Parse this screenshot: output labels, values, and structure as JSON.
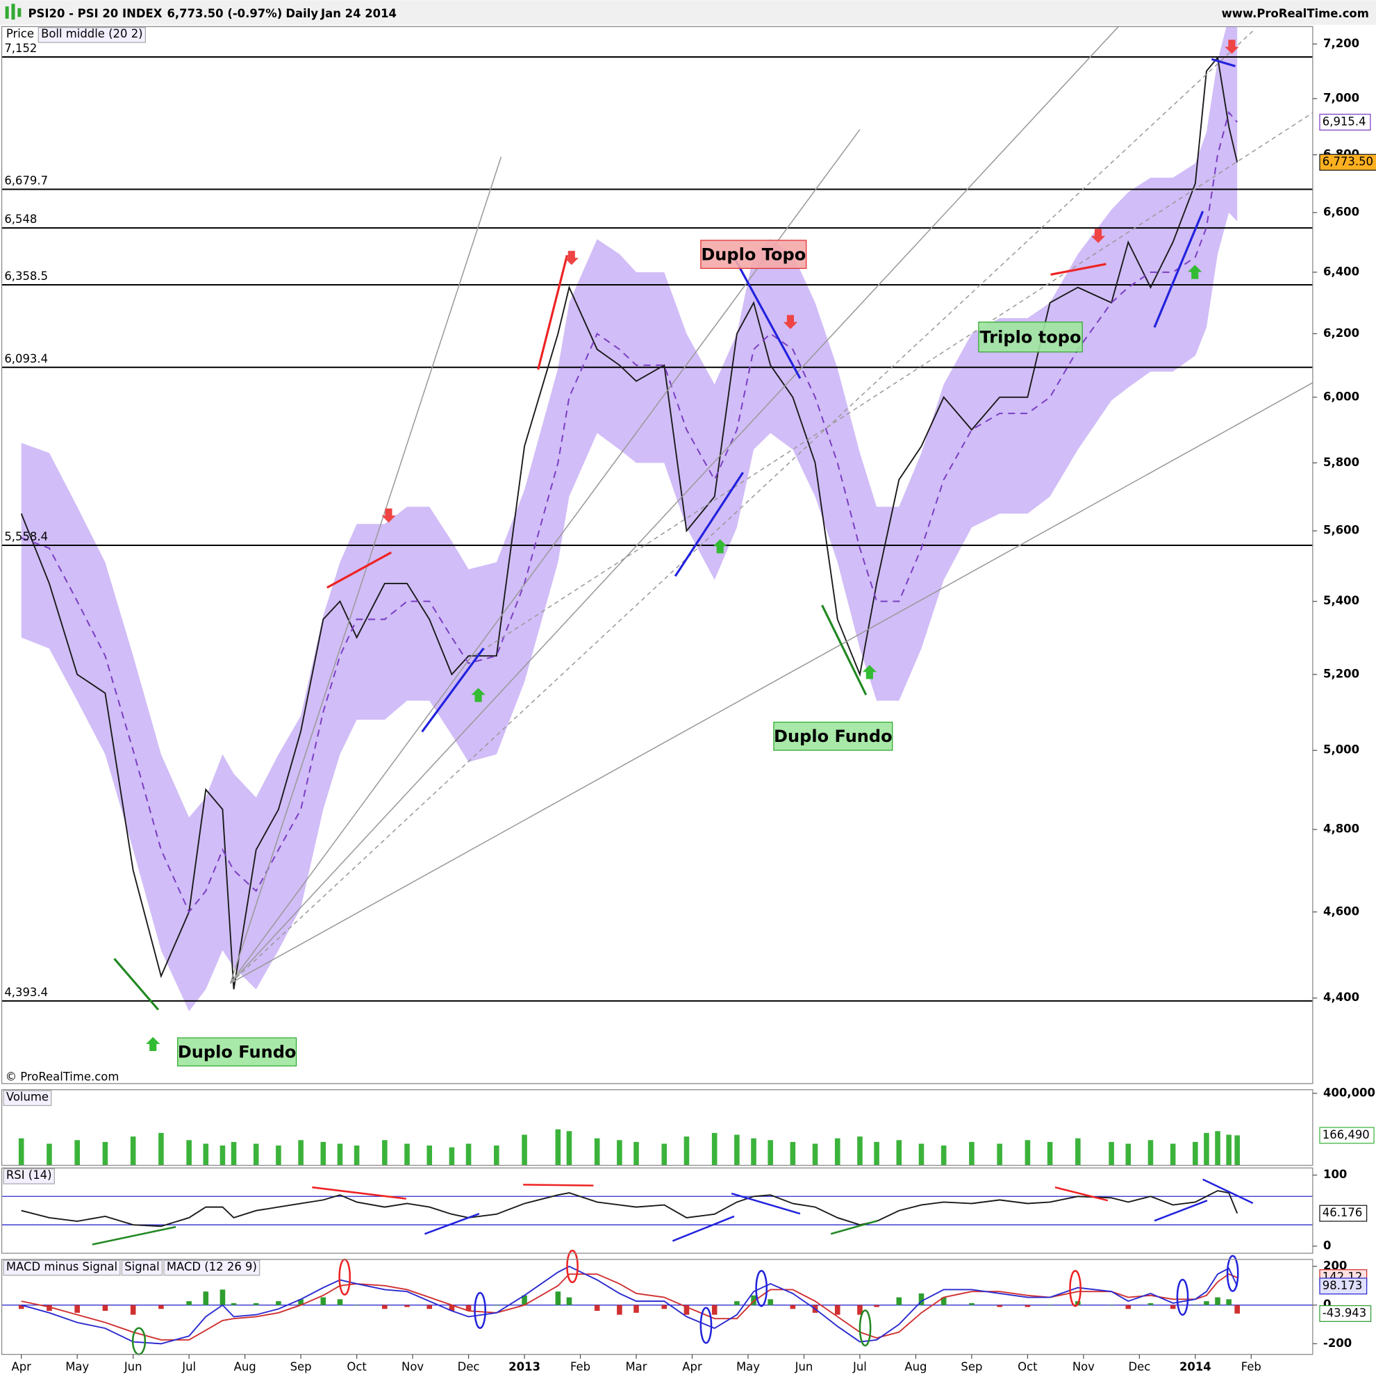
{
  "header": {
    "symbol": "PSI20 - PSI 20 INDEX",
    "quote": "6,773.50 (-0.97%)",
    "period": "Daily",
    "date": "Jan 24 2014",
    "site": "www.ProRealTime.com",
    "copyright": "© ProRealTime.com"
  },
  "annotations": [
    "Duplo Topo",
    "Triplo topo",
    "Duplo Fundo",
    "Duplo Fundo"
  ],
  "chart_data": [
    {
      "type": "line",
      "log": true,
      "xlim": [
        -0.35,
        23.1
      ],
      "xticks": [
        {
          "value": 0,
          "label": "Apr"
        },
        {
          "value": 1,
          "label": "May"
        },
        {
          "value": 2,
          "label": "Jun"
        },
        {
          "value": 3,
          "label": "Jul"
        },
        {
          "value": 4,
          "label": "Aug"
        },
        {
          "value": 5,
          "label": "Sep"
        },
        {
          "value": 6,
          "label": "Oct"
        },
        {
          "value": 7,
          "label": "Nov"
        },
        {
          "value": 8,
          "label": "Dec"
        },
        {
          "value": 9,
          "label": "2013"
        },
        {
          "value": 10,
          "label": "Feb"
        },
        {
          "value": 11,
          "label": "Mar"
        },
        {
          "value": 12,
          "label": "Apr"
        },
        {
          "value": 13,
          "label": "May"
        },
        {
          "value": 14,
          "label": "Jun"
        },
        {
          "value": 15,
          "label": "Jul"
        },
        {
          "value": 16,
          "label": "Aug"
        },
        {
          "value": 17,
          "label": "Sep"
        },
        {
          "value": 18,
          "label": "Oct"
        },
        {
          "value": 19,
          "label": "Nov"
        },
        {
          "value": 20,
          "label": "Dec"
        },
        {
          "value": 21,
          "label": "2014"
        },
        {
          "value": 22,
          "label": "Feb"
        }
      ],
      "ylim": [
        4210,
        7265
      ],
      "yticks": [
        {
          "value": 4400,
          "label": "4,400"
        },
        {
          "value": 4600,
          "label": "4,600"
        },
        {
          "value": 4800,
          "label": "4,800"
        },
        {
          "value": 5000,
          "label": "5,000"
        },
        {
          "value": 5200,
          "label": "5,200"
        },
        {
          "value": 5400,
          "label": "5,400"
        },
        {
          "value": 5600,
          "label": "5,600"
        },
        {
          "value": 5800,
          "label": "5,800"
        },
        {
          "value": 6000,
          "label": "6,000"
        },
        {
          "value": 6200,
          "label": "6,200"
        },
        {
          "value": 6400,
          "label": "6,400"
        },
        {
          "value": 6600,
          "label": "6,600"
        },
        {
          "value": 6800,
          "label": "6,800"
        },
        {
          "value": 7000,
          "label": "7,000"
        },
        {
          "value": 7200,
          "label": "7,200"
        }
      ],
      "levels": [
        {
          "value": 7152,
          "label": "7,152"
        },
        {
          "value": 6679.7,
          "label": "6,679.7"
        },
        {
          "value": 6548,
          "label": "6,548"
        },
        {
          "value": 6358.5,
          "label": "6,358.5"
        },
        {
          "value": 6093.4,
          "label": "6,093.4"
        },
        {
          "value": 5558.4,
          "label": "5,558.4"
        },
        {
          "value": 4393.4,
          "label": "4,393.4"
        }
      ],
      "x": [
        0,
        0.5,
        1.0,
        1.5,
        2.0,
        2.5,
        3.0,
        3.3,
        3.6,
        3.8,
        4.2,
        4.6,
        5.0,
        5.4,
        5.7,
        6.0,
        6.5,
        6.9,
        7.3,
        7.7,
        8.0,
        8.5,
        9.0,
        9.6,
        9.8,
        10.3,
        10.7,
        11.0,
        11.5,
        11.9,
        12.4,
        12.8,
        13.1,
        13.4,
        13.8,
        14.2,
        14.6,
        15.0,
        15.3,
        15.7,
        16.1,
        16.5,
        17.0,
        17.5,
        18.0,
        18.4,
        18.9,
        19.5,
        19.8,
        20.2,
        20.6,
        21.0,
        21.2,
        21.4,
        21.6,
        21.75
      ],
      "band": {
        "color": "#c9b2f6",
        "upper": [
          5860,
          5830,
          5670,
          5510,
          5250,
          4990,
          4830,
          4880,
          4990,
          4940,
          4880,
          4990,
          5090,
          5360,
          5510,
          5620,
          5620,
          5670,
          5670,
          5570,
          5490,
          5510,
          5720,
          6090,
          6300,
          6510,
          6460,
          6400,
          6400,
          6200,
          6040,
          6200,
          6460,
          6510,
          6460,
          6300,
          6090,
          5830,
          5670,
          5670,
          5830,
          6040,
          6200,
          6250,
          6250,
          6300,
          6460,
          6610,
          6670,
          6720,
          6720,
          6770,
          6880,
          7140,
          7300,
          7260
        ],
        "lower": [
          5300,
          5270,
          5130,
          4990,
          4750,
          4510,
          4370,
          4420,
          4510,
          4470,
          4420,
          4510,
          4610,
          4850,
          4990,
          5080,
          5080,
          5130,
          5130,
          5040,
          4970,
          4990,
          5180,
          5510,
          5700,
          5890,
          5840,
          5800,
          5800,
          5610,
          5460,
          5610,
          5840,
          5890,
          5840,
          5700,
          5510,
          5270,
          5130,
          5130,
          5270,
          5460,
          5610,
          5650,
          5650,
          5700,
          5840,
          5990,
          6030,
          6080,
          6080,
          6130,
          6220,
          6460,
          6600,
          6570
        ]
      },
      "series": [
        {
          "name": "Price",
          "color": "#1a1a1a",
          "last_label": "6,773.50",
          "label_fill": "#ffb020",
          "values": [
            5650,
            5450,
            5200,
            5150,
            4700,
            4450,
            4600,
            4900,
            4850,
            4420,
            4750,
            4850,
            5050,
            5350,
            5400,
            5300,
            5450,
            5450,
            5350,
            5200,
            5250,
            5250,
            5850,
            6200,
            6350,
            6150,
            6100,
            6050,
            6100,
            5600,
            5700,
            6200,
            6300,
            6100,
            6000,
            5800,
            5350,
            5200,
            5450,
            5750,
            5850,
            6000,
            5900,
            6000,
            6000,
            6300,
            6350,
            6300,
            6500,
            6350,
            6500,
            6700,
            7100,
            7150,
            6900,
            6773.5
          ]
        },
        {
          "name": "Boll middle (20 2)",
          "color": "#7b3fc4",
          "dash": true,
          "last_label": "6,915.4",
          "label_fill": "#ffffff",
          "values": [
            5580,
            5550,
            5400,
            5250,
            5000,
            4750,
            4600,
            4650,
            4750,
            4700,
            4650,
            4750,
            4850,
            5100,
            5250,
            5350,
            5350,
            5400,
            5400,
            5300,
            5230,
            5250,
            5450,
            5800,
            6000,
            6200,
            6150,
            6100,
            6100,
            5900,
            5750,
            5900,
            6150,
            6200,
            6150,
            6000,
            5800,
            5550,
            5400,
            5400,
            5550,
            5750,
            5900,
            5950,
            5950,
            6000,
            6150,
            6300,
            6350,
            6400,
            6400,
            6450,
            6550,
            6800,
            6950,
            6915.4
          ]
        }
      ]
    },
    {
      "type": "bar",
      "xlim": [
        -0.35,
        23.1
      ],
      "ylim": [
        0,
        420000
      ],
      "yticks": [
        {
          "value": 400000,
          "label": "400,000"
        }
      ],
      "x": [
        0,
        0.5,
        1.0,
        1.5,
        2.0,
        2.5,
        3.0,
        3.3,
        3.6,
        3.8,
        4.2,
        4.6,
        5.0,
        5.4,
        5.7,
        6.0,
        6.5,
        6.9,
        7.3,
        7.7,
        8.0,
        8.5,
        9.0,
        9.6,
        9.8,
        10.3,
        10.7,
        11.0,
        11.5,
        11.9,
        12.4,
        12.8,
        13.1,
        13.4,
        13.8,
        14.2,
        14.6,
        15.0,
        15.3,
        15.7,
        16.1,
        16.5,
        17.0,
        17.5,
        18.0,
        18.4,
        18.9,
        19.5,
        19.8,
        20.2,
        20.6,
        21.0,
        21.2,
        21.4,
        21.6,
        21.75
      ],
      "series": [
        {
          "name": "Volume",
          "color": "#3bb33b",
          "last_label": "166,490",
          "label_fill": "#ffffff",
          "label_color": "#d9534f",
          "values": [
            150000,
            120000,
            140000,
            130000,
            160000,
            180000,
            140000,
            120000,
            110000,
            130000,
            120000,
            110000,
            140000,
            130000,
            120000,
            110000,
            140000,
            120000,
            110000,
            100000,
            120000,
            110000,
            170000,
            200000,
            190000,
            150000,
            140000,
            130000,
            120000,
            160000,
            180000,
            170000,
            150000,
            140000,
            130000,
            120000,
            150000,
            160000,
            130000,
            140000,
            120000,
            110000,
            130000,
            120000,
            140000,
            130000,
            150000,
            130000,
            120000,
            140000,
            120000,
            130000,
            180000,
            190000,
            170000,
            166490
          ]
        }
      ]
    },
    {
      "type": "line",
      "xlim": [
        -0.35,
        23.1
      ],
      "ylim": [
        -10,
        110
      ],
      "yticks": [
        0,
        100
      ],
      "levels": [
        70,
        30
      ],
      "level_color": "#2a2ad0",
      "x": [
        0,
        0.5,
        1.0,
        1.5,
        2.0,
        2.5,
        3.0,
        3.3,
        3.6,
        3.8,
        4.2,
        4.6,
        5.0,
        5.4,
        5.7,
        6.0,
        6.5,
        6.9,
        7.3,
        7.7,
        8.0,
        8.5,
        9.0,
        9.6,
        9.8,
        10.3,
        10.7,
        11.0,
        11.5,
        11.9,
        12.4,
        12.8,
        13.1,
        13.4,
        13.8,
        14.2,
        14.6,
        15.0,
        15.3,
        15.7,
        16.1,
        16.5,
        17.0,
        17.5,
        18.0,
        18.4,
        18.9,
        19.5,
        19.8,
        20.2,
        20.6,
        21.0,
        21.2,
        21.4,
        21.6,
        21.75
      ],
      "series": [
        {
          "name": "RSI (14)",
          "color": "#1a1a1a",
          "last_label": "46.176",
          "label_fill": "#ffffff",
          "values": [
            50,
            40,
            35,
            42,
            30,
            28,
            40,
            55,
            55,
            40,
            50,
            55,
            60,
            65,
            72,
            62,
            55,
            60,
            55,
            45,
            40,
            45,
            60,
            72,
            75,
            62,
            58,
            55,
            58,
            40,
            45,
            62,
            70,
            72,
            60,
            55,
            40,
            30,
            35,
            50,
            58,
            62,
            60,
            65,
            60,
            62,
            70,
            68,
            62,
            70,
            58,
            62,
            70,
            78,
            75,
            46.176
          ]
        }
      ]
    },
    {
      "type": "line",
      "xlim": [
        -0.35,
        23.1
      ],
      "ylim": [
        -255,
        236
      ],
      "yticks": [
        -200,
        0,
        200
      ],
      "zero_line": true,
      "x": [
        0,
        0.5,
        1.0,
        1.5,
        2.0,
        2.5,
        3.0,
        3.3,
        3.6,
        3.8,
        4.2,
        4.6,
        5.0,
        5.4,
        5.7,
        6.0,
        6.5,
        6.9,
        7.3,
        7.7,
        8.0,
        8.5,
        9.0,
        9.6,
        9.8,
        10.3,
        10.7,
        11.0,
        11.5,
        11.9,
        12.4,
        12.8,
        13.1,
        13.4,
        13.8,
        14.2,
        14.6,
        15.0,
        15.3,
        15.7,
        16.1,
        16.5,
        17.0,
        17.5,
        18.0,
        18.4,
        18.9,
        19.5,
        19.8,
        20.2,
        20.6,
        21.0,
        21.2,
        21.4,
        21.6,
        21.75
      ],
      "series": [
        {
          "name": "MACD minus Signal",
          "kind": "bar",
          "color": "#2e9e2e",
          "neg_color": "#d03030",
          "last_label": "-43.943",
          "label_fill": "#ffffff",
          "label_color": "#d03030",
          "values": [
            -20,
            -30,
            -40,
            -30,
            -50,
            -20,
            20,
            70,
            80,
            10,
            10,
            20,
            30,
            40,
            30,
            0,
            -20,
            -10,
            -20,
            -30,
            -30,
            0,
            50,
            70,
            40,
            -30,
            -50,
            -40,
            -20,
            -50,
            -50,
            20,
            50,
            30,
            -20,
            -40,
            -50,
            -50,
            -10,
            40,
            60,
            40,
            10,
            -10,
            -10,
            0,
            20,
            0,
            -20,
            10,
            -20,
            0,
            20,
            40,
            30,
            -43.943
          ]
        },
        {
          "name": "Signal",
          "color": "#d03030",
          "last_label": "142.12",
          "label_fill": "#ffe0e0",
          "values": [
            20,
            -10,
            -50,
            -90,
            -140,
            -180,
            -180,
            -130,
            -80,
            -70,
            -60,
            -40,
            0,
            50,
            100,
            110,
            100,
            80,
            40,
            0,
            -30,
            -40,
            0,
            100,
            160,
            160,
            110,
            60,
            40,
            -10,
            -70,
            -70,
            20,
            80,
            80,
            20,
            -60,
            -140,
            -170,
            -140,
            -40,
            40,
            70,
            70,
            50,
            40,
            70,
            70,
            40,
            50,
            30,
            30,
            50,
            120,
            160,
            142.12
          ]
        },
        {
          "name": "MACD (12 26 9)",
          "color": "#2a2ad0",
          "last_label": "98.173",
          "label_fill": "#e0e0ff",
          "values": [
            0,
            -40,
            -90,
            -120,
            -190,
            -200,
            -160,
            -60,
            0,
            -60,
            -50,
            -20,
            30,
            90,
            130,
            110,
            80,
            70,
            20,
            -30,
            -60,
            -40,
            50,
            170,
            200,
            130,
            60,
            20,
            20,
            -60,
            -120,
            -50,
            70,
            110,
            60,
            -20,
            -110,
            -190,
            -180,
            -100,
            20,
            80,
            80,
            60,
            40,
            40,
            90,
            70,
            20,
            60,
            10,
            30,
            70,
            160,
            190,
            98.173
          ]
        }
      ]
    }
  ]
}
